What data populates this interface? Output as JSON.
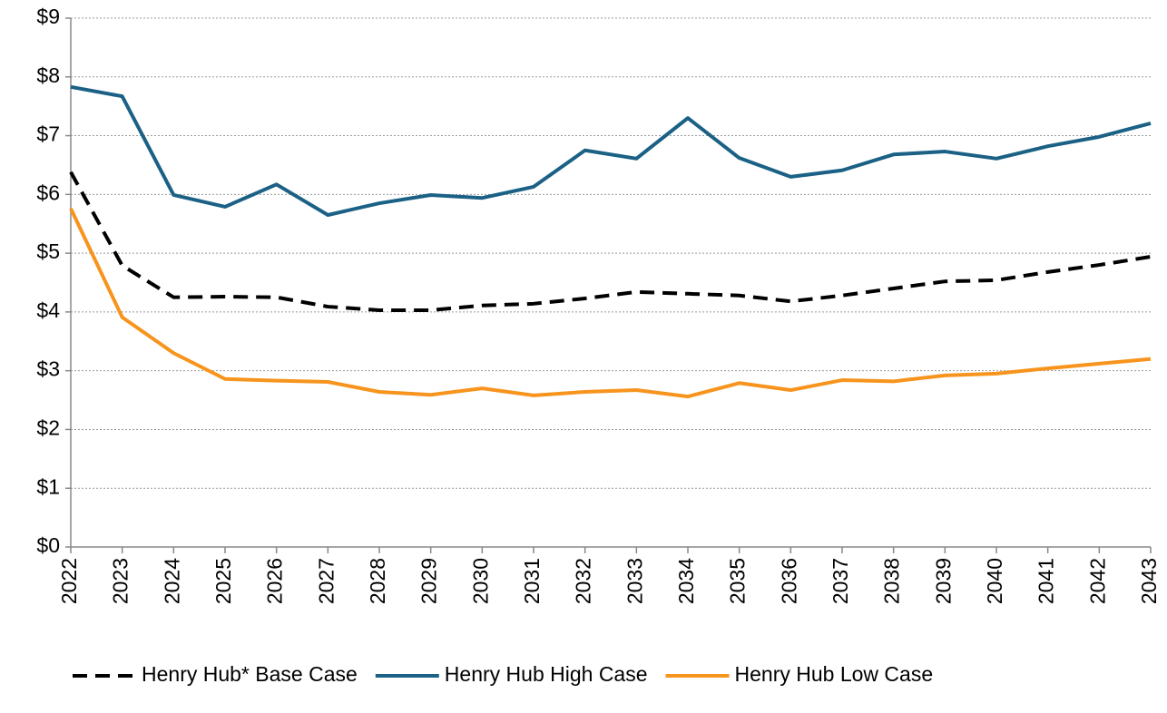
{
  "chart_data": {
    "type": "line",
    "categories": [
      "2022",
      "2023",
      "2024",
      "2025",
      "2026",
      "2027",
      "2028",
      "2029",
      "2030",
      "2031",
      "2032",
      "2033",
      "2034",
      "2035",
      "2036",
      "2037",
      "2038",
      "2039",
      "2040",
      "2041",
      "2042",
      "2043"
    ],
    "series": [
      {
        "name": "Henry Hub* Base Case",
        "color": "#000000",
        "line_style": "dashed",
        "values": [
          6.38,
          4.79,
          4.25,
          4.26,
          4.25,
          4.09,
          4.03,
          4.03,
          4.11,
          4.14,
          4.23,
          4.34,
          4.31,
          4.28,
          4.18,
          4.28,
          4.4,
          4.52,
          4.54,
          4.68,
          4.8,
          4.94
        ]
      },
      {
        "name": "Henry Hub High Case",
        "color": "#1b6185",
        "line_style": "solid",
        "values": [
          7.83,
          7.67,
          5.99,
          5.79,
          6.17,
          5.65,
          5.85,
          5.99,
          5.94,
          6.13,
          6.75,
          6.61,
          7.3,
          6.62,
          6.3,
          6.41,
          6.68,
          6.73,
          6.61,
          6.82,
          6.98,
          7.21
        ]
      },
      {
        "name": "Henry Hub Low Case",
        "color": "#f7941d",
        "line_style": "solid",
        "values": [
          5.76,
          3.91,
          3.3,
          2.86,
          2.83,
          2.81,
          2.64,
          2.59,
          2.7,
          2.58,
          2.64,
          2.67,
          2.56,
          2.79,
          2.67,
          2.84,
          2.82,
          2.92,
          2.95,
          3.04,
          3.12,
          3.2
        ]
      }
    ],
    "ylim": [
      0,
      9
    ],
    "yticks": [
      {
        "value": 0,
        "label": "$0"
      },
      {
        "value": 1,
        "label": "$1"
      },
      {
        "value": 2,
        "label": "$2"
      },
      {
        "value": 3,
        "label": "$3"
      },
      {
        "value": 4,
        "label": "$4"
      },
      {
        "value": 5,
        "label": "$5"
      },
      {
        "value": 6,
        "label": "$6"
      },
      {
        "value": 7,
        "label": "$7"
      },
      {
        "value": 8,
        "label": "$8"
      },
      {
        "value": 9,
        "label": "$9"
      }
    ],
    "grid": true,
    "legend": "bottom"
  }
}
